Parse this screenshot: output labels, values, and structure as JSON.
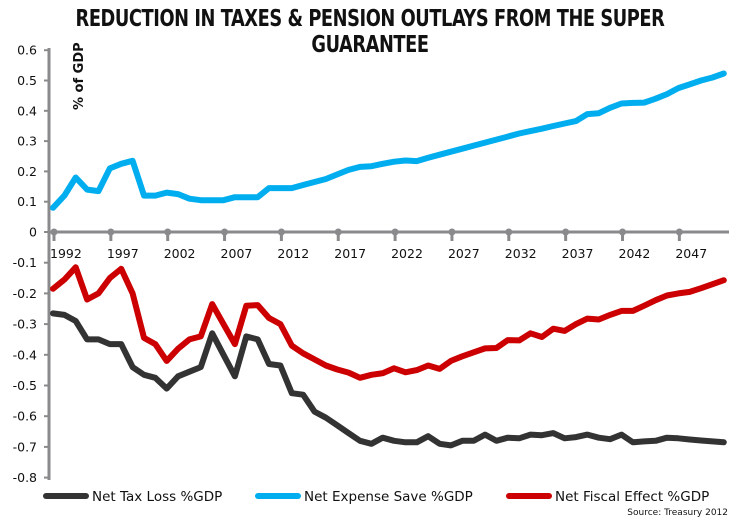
{
  "chart_data": {
    "type": "line",
    "title": "REDUCTION IN TAXES & PENSION OUTLAYS FROM THE SUPER GUARANTEE",
    "ylabel": "% of GDP",
    "xlabel": "",
    "source": "Source: Treasury 2012",
    "ylim": [
      -0.8,
      0.6
    ],
    "yticks": [
      "0.6",
      "0.5",
      "0.4",
      "0.3",
      "0.2",
      "0.1",
      "0",
      "-0.1",
      "-0.2",
      "-0.3",
      "-0.4",
      "-0.5",
      "-0.6",
      "-0.7",
      "-0.8"
    ],
    "xticks": [
      "1992",
      "1997",
      "2002",
      "2007",
      "2012",
      "2017",
      "2022",
      "2027",
      "2032",
      "2037",
      "2042",
      "2047"
    ],
    "grid": false,
    "legend_position": "bottom",
    "x_start": 1992,
    "series": [
      {
        "name": "Net Tax Loss %GDP",
        "color": "#333333",
        "values": [
          -0.265,
          -0.27,
          -0.29,
          -0.35,
          -0.35,
          -0.365,
          -0.365,
          -0.44,
          -0.465,
          -0.475,
          -0.51,
          -0.47,
          -0.455,
          -0.44,
          -0.33,
          -0.4,
          -0.47,
          -0.34,
          -0.35,
          -0.43,
          -0.435,
          -0.525,
          -0.53,
          -0.585,
          -0.605,
          -0.63,
          -0.655,
          -0.68,
          -0.69,
          -0.67,
          -0.68,
          -0.685,
          -0.685,
          -0.665,
          -0.69,
          -0.695,
          -0.68,
          -0.68,
          -0.66,
          -0.68,
          -0.67,
          -0.672,
          -0.66,
          -0.662,
          -0.655,
          -0.672,
          -0.668,
          -0.66,
          -0.67,
          -0.675,
          -0.66,
          -0.685,
          -0.682,
          -0.68,
          -0.67,
          -0.672,
          -0.676,
          -0.679,
          -0.682,
          -0.685
        ]
      },
      {
        "name": "Net Expense Save %GDP",
        "color": "#00AEEF",
        "values": [
          0.08,
          0.12,
          0.18,
          0.14,
          0.135,
          0.21,
          0.225,
          0.235,
          0.12,
          0.12,
          0.13,
          0.125,
          0.11,
          0.105,
          0.105,
          0.105,
          0.115,
          0.115,
          0.115,
          0.145,
          0.145,
          0.145,
          0.155,
          0.165,
          0.175,
          0.19,
          0.205,
          0.215,
          0.217,
          0.225,
          0.232,
          0.236,
          0.234,
          0.245,
          0.255,
          0.265,
          0.275,
          0.285,
          0.295,
          0.305,
          0.315,
          0.325,
          0.333,
          0.341,
          0.35,
          0.358,
          0.366,
          0.389,
          0.392,
          0.41,
          0.424,
          0.426,
          0.427,
          0.44,
          0.455,
          0.475,
          0.487,
          0.5,
          0.51,
          0.523
        ]
      },
      {
        "name": "Net Fiscal Effect %GDP",
        "color": "#CC0000",
        "values": [
          -0.185,
          -0.155,
          -0.115,
          -0.22,
          -0.2,
          -0.15,
          -0.12,
          -0.2,
          -0.345,
          -0.365,
          -0.42,
          -0.38,
          -0.35,
          -0.34,
          -0.235,
          -0.3,
          -0.365,
          -0.24,
          -0.238,
          -0.28,
          -0.3,
          -0.37,
          -0.395,
          -0.415,
          -0.435,
          -0.448,
          -0.458,
          -0.475,
          -0.465,
          -0.46,
          -0.444,
          -0.457,
          -0.45,
          -0.435,
          -0.446,
          -0.42,
          -0.405,
          -0.392,
          -0.379,
          -0.378,
          -0.352,
          -0.353,
          -0.33,
          -0.342,
          -0.315,
          -0.322,
          -0.3,
          -0.282,
          -0.285,
          -0.27,
          -0.257,
          -0.257,
          -0.24,
          -0.222,
          -0.207,
          -0.2,
          -0.195,
          -0.183,
          -0.17,
          -0.157
        ]
      }
    ]
  }
}
